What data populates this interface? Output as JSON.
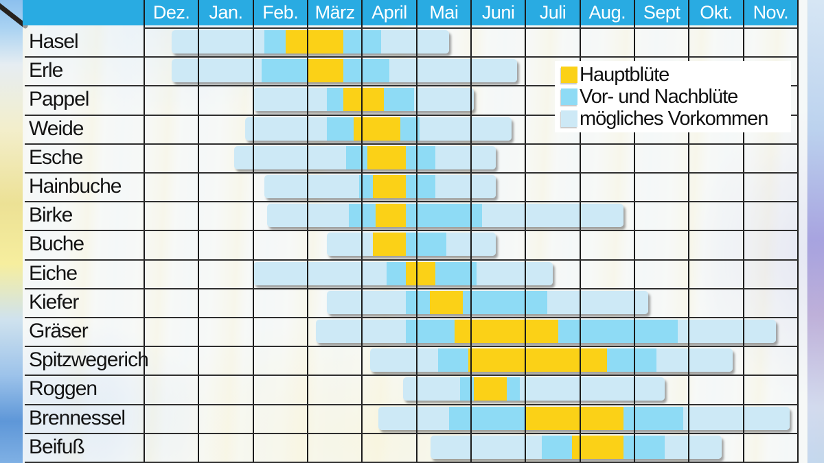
{
  "colors": {
    "main": "#FBD117",
    "secondary": "#8EDBF5",
    "possible": "#CDE9F6",
    "header_band": "#29ABE2",
    "grid_vertical": "#1B1B1B",
    "grid_horizontal": "#2E2E2E",
    "text": "#141414",
    "legend_background": "#FFFFFF"
  },
  "legend": {
    "items": [
      {
        "label": "Hauptblüte",
        "kind": "main",
        "color": "#FBD117"
      },
      {
        "label": "Vor- und Nachblüte",
        "kind": "secondary",
        "color": "#8EDBF5"
      },
      {
        "label": "mögliches Vorkommen",
        "kind": "possible",
        "color": "#CDE9F6"
      }
    ]
  },
  "chart_data": {
    "type": "bar",
    "subtype": "pollen-flight-calendar-timeline",
    "legend_position": "upper right overlay",
    "grid": true,
    "months": [
      "Dez.",
      "Jan.",
      "Feb.",
      "März",
      "April",
      "Mai",
      "Juni",
      "Juli",
      "Aug.",
      "Sept",
      "Okt.",
      "Nov."
    ],
    "unit_note": "segment start/end in month units, 0 = beginning of Dez., 12 = end of Nov.",
    "segment_kinds": {
      "main": "Hauptblüte",
      "secondary": "Vor- und Nachblüte",
      "possible": "mögliches Vorkommen"
    },
    "rows": [
      {
        "name": "Hasel",
        "segments": [
          [
            "possible",
            0.5,
            2.2
          ],
          [
            "secondary",
            2.2,
            2.6
          ],
          [
            "main",
            2.6,
            3.65
          ],
          [
            "secondary",
            3.65,
            4.35
          ],
          [
            "possible",
            4.35,
            5.6
          ]
        ]
      },
      {
        "name": "Erle",
        "segments": [
          [
            "possible",
            0.5,
            2.15
          ],
          [
            "secondary",
            2.15,
            3.0
          ],
          [
            "main",
            3.0,
            3.65
          ],
          [
            "secondary",
            3.65,
            4.5
          ],
          [
            "possible",
            4.5,
            6.85
          ]
        ]
      },
      {
        "name": "Pappel",
        "segments": [
          [
            "possible",
            2.0,
            3.35
          ],
          [
            "secondary",
            3.35,
            3.65
          ],
          [
            "main",
            3.65,
            4.4
          ],
          [
            "secondary",
            4.4,
            4.95
          ],
          [
            "possible",
            4.95,
            6.05
          ]
        ]
      },
      {
        "name": "Weide",
        "segments": [
          [
            "possible",
            1.85,
            3.35
          ],
          [
            "secondary",
            3.35,
            3.85
          ],
          [
            "main",
            3.85,
            4.7
          ],
          [
            "secondary",
            4.7,
            5.05
          ],
          [
            "possible",
            5.05,
            6.75
          ]
        ]
      },
      {
        "name": "Esche",
        "segments": [
          [
            "possible",
            1.65,
            3.7
          ],
          [
            "secondary",
            3.7,
            4.1
          ],
          [
            "main",
            4.1,
            4.8
          ],
          [
            "secondary",
            4.8,
            5.35
          ],
          [
            "possible",
            5.35,
            6.45
          ]
        ]
      },
      {
        "name": "Hainbuche",
        "segments": [
          [
            "possible",
            2.2,
            3.95
          ],
          [
            "secondary",
            3.95,
            4.2
          ],
          [
            "main",
            4.2,
            4.8
          ],
          [
            "secondary",
            4.8,
            5.35
          ],
          [
            "possible",
            5.35,
            6.45
          ]
        ]
      },
      {
        "name": "Birke",
        "segments": [
          [
            "possible",
            2.25,
            3.75
          ],
          [
            "secondary",
            3.75,
            4.25
          ],
          [
            "main",
            4.25,
            4.8
          ],
          [
            "secondary",
            4.8,
            6.2
          ],
          [
            "possible",
            6.2,
            8.8
          ]
        ]
      },
      {
        "name": "Buche",
        "segments": [
          [
            "possible",
            3.35,
            4.2
          ],
          [
            "main",
            4.2,
            4.8
          ],
          [
            "secondary",
            4.8,
            5.55
          ],
          [
            "possible",
            5.55,
            6.45
          ]
        ]
      },
      {
        "name": "Eiche",
        "segments": [
          [
            "possible",
            2.0,
            4.45
          ],
          [
            "secondary",
            4.45,
            4.8
          ],
          [
            "main",
            4.8,
            5.35
          ],
          [
            "secondary",
            5.35,
            6.1
          ],
          [
            "possible",
            6.1,
            7.5
          ]
        ]
      },
      {
        "name": "Kiefer",
        "segments": [
          [
            "possible",
            3.35,
            4.8
          ],
          [
            "secondary",
            4.8,
            5.25
          ],
          [
            "main",
            5.25,
            5.85
          ],
          [
            "secondary",
            5.85,
            7.4
          ],
          [
            "possible",
            7.4,
            9.25
          ]
        ]
      },
      {
        "name": "Gräser",
        "segments": [
          [
            "possible",
            3.15,
            4.8
          ],
          [
            "secondary",
            4.8,
            5.7
          ],
          [
            "main",
            5.7,
            7.6
          ],
          [
            "secondary",
            7.6,
            9.8
          ],
          [
            "possible",
            9.8,
            11.6
          ]
        ]
      },
      {
        "name": "Spitzwegerich",
        "segments": [
          [
            "possible",
            4.15,
            5.4
          ],
          [
            "secondary",
            5.4,
            5.95
          ],
          [
            "main",
            5.95,
            8.5
          ],
          [
            "secondary",
            8.5,
            9.4
          ],
          [
            "possible",
            9.4,
            10.8
          ]
        ]
      },
      {
        "name": "Roggen",
        "segments": [
          [
            "possible",
            4.75,
            5.8
          ],
          [
            "secondary",
            5.8,
            6.05
          ],
          [
            "main",
            6.05,
            6.65
          ],
          [
            "secondary",
            6.65,
            6.9
          ],
          [
            "possible",
            6.9,
            9.55
          ]
        ]
      },
      {
        "name": "Brennessel",
        "segments": [
          [
            "possible",
            4.3,
            5.6
          ],
          [
            "secondary",
            5.6,
            7.0
          ],
          [
            "main",
            7.0,
            8.8
          ],
          [
            "secondary",
            8.8,
            9.9
          ],
          [
            "possible",
            9.9,
            11.85
          ]
        ]
      },
      {
        "name": "Beifuß",
        "segments": [
          [
            "possible",
            5.25,
            7.3
          ],
          [
            "secondary",
            7.3,
            7.85
          ],
          [
            "main",
            7.85,
            8.8
          ],
          [
            "secondary",
            8.8,
            9.55
          ],
          [
            "possible",
            9.55,
            10.6
          ]
        ]
      }
    ]
  }
}
